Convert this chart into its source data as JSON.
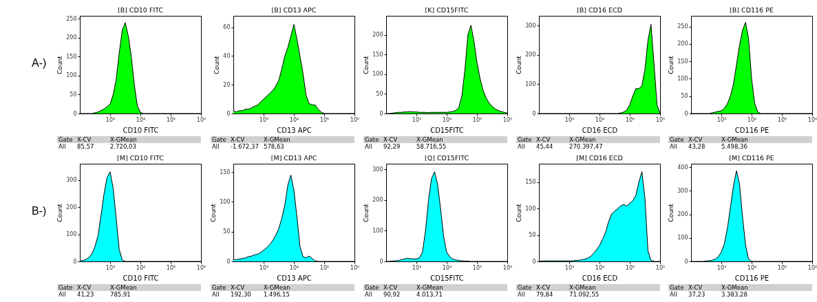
{
  "chart_data": [
    {
      "type": "area",
      "title": "[B] CD10 FITC",
      "xlabel": "CD10 FITC",
      "ylabel": "Count",
      "log": "x",
      "marker": "none",
      "xlim": [
        100,
        1000000
      ],
      "xticks": [
        {
          "value": 1000,
          "label": "10³"
        },
        {
          "value": 10000,
          "label": "10⁴"
        },
        {
          "value": 100000,
          "label": "10⁵"
        },
        {
          "value": 1000000,
          "label": "10⁶"
        }
      ],
      "ylim": [
        0,
        258
      ],
      "yticks": [
        0,
        50,
        100,
        150,
        200,
        250
      ],
      "x": [
        100,
        126,
        158,
        200,
        251,
        316,
        398,
        501,
        631,
        794,
        1000,
        1259,
        1585,
        1995,
        2512,
        3162,
        3981,
        5012,
        6310,
        7943,
        10000,
        12589,
        15849,
        19953,
        25119,
        31623,
        39811,
        50119,
        63096,
        79433,
        100000,
        125893,
        158489,
        199526,
        251189,
        316228,
        398107,
        501187,
        630957,
        794328,
        1000000
      ],
      "series": [
        {
          "color": "#00ff00",
          "values": [
            0,
            0,
            0,
            0,
            0,
            2,
            4,
            8,
            12,
            18,
            25,
            50,
            90,
            160,
            220,
            240,
            205,
            150,
            75,
            20,
            3,
            0,
            0,
            0,
            0,
            0,
            0,
            0,
            0,
            0,
            0,
            0,
            0,
            0,
            0,
            0,
            0,
            0,
            0,
            0,
            0
          ]
        }
      ],
      "annotations": [
        "Gate",
        "X-CV",
        "X-GMean",
        "All",
        "85,57",
        "2.720,03",
        "A-)"
      ]
    },
    {
      "type": "area",
      "title": "[B] CD13 APC",
      "xlabel": "CD13 APC",
      "ylabel": "Count",
      "log": "x",
      "marker": "none",
      "xlim": [
        100,
        1000000
      ],
      "xticks": [
        {
          "value": 1000,
          "label": "10³"
        },
        {
          "value": 10000,
          "label": "10⁴"
        },
        {
          "value": 100000,
          "label": "10⁵"
        },
        {
          "value": 1000000,
          "label": "10⁶"
        }
      ],
      "ylim": [
        0,
        68
      ],
      "yticks": [
        0,
        20,
        40,
        60
      ],
      "x": [
        100,
        126,
        158,
        200,
        251,
        316,
        398,
        501,
        631,
        794,
        1000,
        1259,
        1585,
        1995,
        2512,
        3162,
        3981,
        5012,
        6310,
        7943,
        10000,
        12589,
        15849,
        19953,
        25119,
        31623,
        39811,
        50119,
        63096,
        79433,
        100000,
        125893,
        158489,
        199526,
        251189,
        316228,
        398107,
        501187,
        630957,
        794328,
        1000000
      ],
      "series": [
        {
          "color": "#00ff00",
          "values": [
            2,
            1,
            2,
            2,
            3,
            3,
            4,
            5,
            6,
            8,
            10,
            12,
            14,
            16,
            19,
            23,
            31,
            40,
            46,
            54,
            62,
            52,
            40,
            28,
            13,
            7,
            6,
            6,
            3,
            1,
            0,
            0,
            0,
            0,
            0,
            0,
            0,
            0,
            0,
            0,
            0
          ]
        }
      ],
      "annotations": [
        "Gate",
        "X-CV",
        "X-GMean",
        "All",
        "-1.672,37",
        "578,63"
      ]
    },
    {
      "type": "area",
      "title": "[K] CD15FITC",
      "xlabel": "CD15FITC",
      "ylabel": "Count",
      "log": "x",
      "marker": "none",
      "xlim": [
        100,
        1000000
      ],
      "xticks": [
        {
          "value": 1000,
          "label": "10³"
        },
        {
          "value": 10000,
          "label": "10⁴"
        },
        {
          "value": 100000,
          "label": "10⁵"
        },
        {
          "value": 1000000,
          "label": "10⁶"
        }
      ],
      "ylim": [
        0,
        249
      ],
      "yticks": [
        0,
        50,
        100,
        150,
        200
      ],
      "x": [
        100,
        126,
        158,
        200,
        251,
        316,
        398,
        501,
        631,
        794,
        1000,
        1259,
        1585,
        1995,
        2512,
        3162,
        3981,
        5012,
        6310,
        7943,
        10000,
        12589,
        15849,
        19953,
        25119,
        31623,
        39811,
        50119,
        63096,
        79433,
        100000,
        125893,
        158489,
        199526,
        251189,
        316228,
        398107,
        501187,
        630957,
        794328,
        1000000
      ],
      "series": [
        {
          "color": "#00ff00",
          "values": [
            0,
            0,
            1,
            2,
            3,
            3,
            4,
            4,
            5,
            4,
            4,
            3,
            3,
            3,
            2,
            3,
            3,
            3,
            3,
            3,
            3,
            4,
            5,
            8,
            15,
            45,
            110,
            200,
            225,
            185,
            130,
            90,
            60,
            40,
            27,
            18,
            12,
            8,
            5,
            3,
            1
          ]
        }
      ],
      "annotations": [
        "Gate",
        "X-CV",
        "X-GMean",
        "All",
        "92,29",
        "58.716,55"
      ]
    },
    {
      "type": "area",
      "title": "[B] CD16 ECD",
      "xlabel": "CD16 ECD",
      "ylabel": "Count",
      "log": "x",
      "marker": "none",
      "xlim": [
        100,
        1000000
      ],
      "xticks": [
        {
          "value": 1000,
          "label": "10³"
        },
        {
          "value": 10000,
          "label": "10⁴"
        },
        {
          "value": 100000,
          "label": "10⁵"
        },
        {
          "value": 1000000,
          "label": "10⁶"
        }
      ],
      "ylim": [
        0,
        334
      ],
      "yticks": [
        0,
        100,
        200,
        300
      ],
      "x": [
        100,
        126,
        158,
        200,
        251,
        316,
        398,
        501,
        631,
        794,
        1000,
        1259,
        1585,
        1995,
        2512,
        3162,
        3981,
        5012,
        6310,
        7943,
        10000,
        12589,
        15849,
        19953,
        25119,
        31623,
        39811,
        50119,
        63096,
        79433,
        100000,
        125893,
        158489,
        199526,
        251189,
        316228,
        398107,
        501187,
        630957,
        794328,
        1000000
      ],
      "series": [
        {
          "color": "#00ff00",
          "values": [
            0,
            0,
            0,
            0,
            0,
            0,
            0,
            0,
            0,
            0,
            0,
            0,
            0,
            0,
            0,
            0,
            0,
            0,
            0,
            0,
            0,
            0,
            0,
            0,
            0,
            0,
            0,
            2,
            5,
            12,
            30,
            60,
            85,
            85,
            95,
            150,
            250,
            305,
            170,
            30,
            0
          ]
        }
      ],
      "annotations": [
        "Gate",
        "X-CV",
        "X-GMean",
        "All",
        "45,44",
        "270.397,47"
      ]
    },
    {
      "type": "area",
      "title": "[B] CD116 PE",
      "xlabel": "CD116 PE",
      "ylabel": "Count",
      "log": "x",
      "marker": "none",
      "xlim": [
        100,
        1000000
      ],
      "xticks": [
        {
          "value": 1000,
          "label": "10³"
        },
        {
          "value": 10000,
          "label": "10⁴"
        },
        {
          "value": 100000,
          "label": "10⁵"
        },
        {
          "value": 1000000,
          "label": "10⁶"
        }
      ],
      "ylim": [
        0,
        281
      ],
      "yticks": [
        0,
        50,
        100,
        150,
        200,
        250
      ],
      "x": [
        100,
        126,
        158,
        200,
        251,
        316,
        398,
        501,
        631,
        794,
        1000,
        1259,
        1585,
        1995,
        2512,
        3162,
        3981,
        5012,
        6310,
        7943,
        10000,
        12589,
        15849,
        19953,
        25119,
        31623,
        39811,
        50119,
        63096,
        79433,
        100000,
        125893,
        158489,
        199526,
        251189,
        316228,
        398107,
        501187,
        630957,
        794328,
        1000000
      ],
      "series": [
        {
          "color": "#00ff00",
          "values": [
            0,
            0,
            0,
            0,
            0,
            0,
            0,
            2,
            4,
            6,
            8,
            15,
            28,
            50,
            85,
            140,
            195,
            240,
            262,
            215,
            100,
            30,
            5,
            0,
            0,
            0,
            0,
            0,
            0,
            0,
            0,
            0,
            0,
            0,
            0,
            0,
            0,
            0,
            0,
            0,
            0
          ]
        }
      ],
      "annotations": [
        "Gate",
        "X-CV",
        "X-GMean",
        "All",
        "43,28",
        "5.498,36"
      ]
    },
    {
      "type": "area",
      "title": "[M] CD10 FITC",
      "xlabel": "CD10 FITC",
      "ylabel": "Count",
      "log": "x",
      "marker": "none",
      "xlim": [
        100,
        1000000
      ],
      "xticks": [
        {
          "value": 1000,
          "label": "10³"
        },
        {
          "value": 10000,
          "label": "10⁴"
        },
        {
          "value": 100000,
          "label": "10⁵"
        },
        {
          "value": 1000000,
          "label": "10⁶"
        }
      ],
      "ylim": [
        0,
        360
      ],
      "yticks": [
        0,
        100,
        200,
        300
      ],
      "x": [
        100,
        126,
        158,
        200,
        251,
        316,
        398,
        501,
        631,
        794,
        1000,
        1259,
        1585,
        1995,
        2512,
        3162,
        3981,
        5012,
        6310,
        7943,
        10000,
        12589,
        15849,
        19953,
        25119,
        31623,
        39811,
        50119,
        63096,
        79433,
        100000,
        125893,
        158489,
        199526,
        251189,
        316228,
        398107,
        501187,
        630957,
        794328,
        1000000
      ],
      "series": [
        {
          "color": "#00ffff",
          "values": [
            2,
            3,
            7,
            15,
            28,
            55,
            95,
            170,
            250,
            310,
            330,
            270,
            160,
            45,
            5,
            0,
            0,
            0,
            0,
            0,
            0,
            0,
            0,
            0,
            0,
            0,
            0,
            0,
            0,
            0,
            0,
            0,
            0,
            0,
            0,
            0,
            0,
            0,
            0,
            0,
            0
          ]
        }
      ],
      "annotations": [
        "Gate",
        "X-CV",
        "X-GMean",
        "All",
        "41,23",
        "785,91",
        "B-)"
      ]
    },
    {
      "type": "area",
      "title": "[M] CD13 APC",
      "xlabel": "CD13 APC",
      "ylabel": "Count",
      "log": "x",
      "marker": "none",
      "xlim": [
        100,
        1000000
      ],
      "xticks": [
        {
          "value": 1000,
          "label": "10³"
        },
        {
          "value": 10000,
          "label": "10⁴"
        },
        {
          "value": 100000,
          "label": "10⁵"
        },
        {
          "value": 1000000,
          "label": "10⁶"
        }
      ],
      "ylim": [
        0,
        164
      ],
      "yticks": [
        0,
        50,
        100,
        150
      ],
      "x": [
        100,
        126,
        158,
        200,
        251,
        316,
        398,
        501,
        631,
        794,
        1000,
        1259,
        1585,
        1995,
        2512,
        3162,
        3981,
        5012,
        6310,
        7943,
        10000,
        12589,
        15849,
        19953,
        25119,
        31623,
        39811,
        50119,
        63096,
        79433,
        100000,
        125893,
        158489,
        199526,
        251189,
        316228,
        398107,
        501187,
        630957,
        794328,
        1000000
      ],
      "series": [
        {
          "color": "#00ffff",
          "values": [
            3,
            3,
            4,
            5,
            6,
            8,
            9,
            11,
            12,
            15,
            19,
            23,
            28,
            35,
            44,
            55,
            72,
            95,
            128,
            145,
            120,
            75,
            25,
            8,
            6,
            9,
            5,
            1,
            0,
            0,
            0,
            0,
            0,
            0,
            0,
            0,
            0,
            0,
            0,
            0,
            0
          ]
        }
      ],
      "annotations": [
        "Gate",
        "X-CV",
        "X-GMean",
        "All",
        "192,30",
        "1.496,15"
      ]
    },
    {
      "type": "area",
      "title": "[Q] CD15FITC",
      "xlabel": "CD15FITC",
      "ylabel": "Count",
      "log": "x",
      "marker": "none",
      "xlim": [
        100,
        1000000
      ],
      "xticks": [
        {
          "value": 1000,
          "label": "10³"
        },
        {
          "value": 10000,
          "label": "10⁴"
        },
        {
          "value": 100000,
          "label": "10⁵"
        },
        {
          "value": 1000000,
          "label": "10⁶"
        }
      ],
      "ylim": [
        0,
        318
      ],
      "yticks": [
        0,
        100,
        200,
        300
      ],
      "x": [
        100,
        126,
        158,
        200,
        251,
        316,
        398,
        501,
        631,
        794,
        1000,
        1259,
        1585,
        1995,
        2512,
        3162,
        3981,
        5012,
        6310,
        7943,
        10000,
        12589,
        15849,
        19953,
        25119,
        31623,
        39811,
        50119,
        63096,
        79433,
        100000,
        125893,
        158489,
        199526,
        251189,
        316228,
        398107,
        501187,
        630957,
        794328,
        1000000
      ],
      "series": [
        {
          "color": "#00ffff",
          "values": [
            0,
            0,
            1,
            2,
            3,
            5,
            8,
            10,
            9,
            8,
            8,
            12,
            30,
            100,
            200,
            270,
            292,
            250,
            170,
            80,
            30,
            15,
            8,
            5,
            3,
            2,
            1,
            1,
            0,
            0,
            0,
            0,
            0,
            0,
            0,
            0,
            0,
            0,
            0,
            0,
            0
          ]
        }
      ],
      "annotations": [
        "Gate",
        "X-CV",
        "X-GMean",
        "All",
        "90,92",
        "4.013,71"
      ]
    },
    {
      "type": "area",
      "title": "[M] CD16 ECD",
      "xlabel": "CD16 ECD",
      "ylabel": "Count",
      "log": "x",
      "marker": "none",
      "xlim": [
        100,
        1000000
      ],
      "xticks": [
        {
          "value": 1000,
          "label": "10³"
        },
        {
          "value": 10000,
          "label": "10⁴"
        },
        {
          "value": 100000,
          "label": "10⁵"
        },
        {
          "value": 1000000,
          "label": "10⁶"
        }
      ],
      "ylim": [
        0,
        185
      ],
      "yticks": [
        0,
        50,
        100,
        150
      ],
      "x": [
        100,
        126,
        158,
        200,
        251,
        316,
        398,
        501,
        631,
        794,
        1000,
        1259,
        1585,
        1995,
        2512,
        3162,
        3981,
        5012,
        6310,
        7943,
        10000,
        12589,
        15849,
        19953,
        25119,
        31623,
        39811,
        50119,
        63096,
        79433,
        100000,
        125893,
        158489,
        199526,
        251189,
        316228,
        398107,
        501187,
        630957,
        794328,
        1000000
      ],
      "series": [
        {
          "color": "#00ffff",
          "values": [
            0,
            1,
            1,
            1,
            1,
            1,
            1,
            1,
            1,
            1,
            1,
            1,
            2,
            2,
            3,
            4,
            6,
            9,
            15,
            22,
            30,
            42,
            55,
            75,
            90,
            95,
            100,
            105,
            108,
            105,
            110,
            115,
            125,
            150,
            170,
            120,
            20,
            2,
            0,
            0,
            0
          ]
        }
      ],
      "annotations": [
        "Gate",
        "X-CV",
        "X-GMean",
        "All",
        "79,84",
        "71.092,55"
      ]
    },
    {
      "type": "area",
      "title": "[M] CD116 PE",
      "xlabel": "CD116 PE",
      "ylabel": "Count",
      "log": "x",
      "marker": "none",
      "xlim": [
        100,
        1000000
      ],
      "xticks": [
        {
          "value": 1000,
          "label": "10³"
        },
        {
          "value": 10000,
          "label": "10⁴"
        },
        {
          "value": 100000,
          "label": "10⁵"
        },
        {
          "value": 1000000,
          "label": "10⁶"
        }
      ],
      "ylim": [
        0,
        415
      ],
      "yticks": [
        0,
        100,
        200,
        300,
        400
      ],
      "x": [
        100,
        126,
        158,
        200,
        251,
        316,
        398,
        501,
        631,
        794,
        1000,
        1259,
        1585,
        1995,
        2512,
        3162,
        3981,
        5012,
        6310,
        7943,
        10000,
        12589,
        15849,
        19953,
        25119,
        31623,
        39811,
        50119,
        63096,
        79433,
        100000,
        125893,
        158489,
        199526,
        251189,
        316228,
        398107,
        501187,
        630957,
        794328,
        1000000
      ],
      "series": [
        {
          "color": "#00ffff",
          "values": [
            0,
            0,
            0,
            0,
            0,
            2,
            3,
            5,
            10,
            20,
            40,
            75,
            140,
            230,
            320,
            385,
            330,
            190,
            70,
            10,
            0,
            0,
            0,
            0,
            0,
            0,
            0,
            0,
            0,
            0,
            0,
            0,
            0,
            0,
            0,
            0,
            0,
            0,
            0,
            0,
            0
          ]
        }
      ],
      "annotations": [
        "Gate",
        "X-CV",
        "X-GMean",
        "All",
        "37,23",
        "3.383,28"
      ]
    }
  ]
}
